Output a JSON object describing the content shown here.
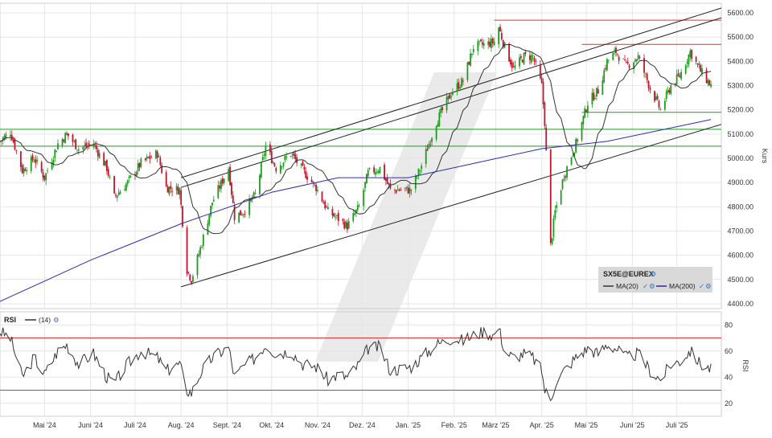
{
  "chart_data": [
    {
      "type": "candlestick",
      "title": "SX5E@EUREX",
      "ylabel": "Kurs",
      "ylim": [
        4380,
        5640
      ],
      "yticks": [
        4400,
        4500,
        4600,
        4700,
        4800,
        4900,
        5000,
        5100,
        5200,
        5300,
        5400,
        5500,
        5600
      ],
      "ytick_labels": [
        "4400.00",
        "4500.00",
        "4600.00",
        "4700.00",
        "4800.00",
        "4900.00",
        "5000.00",
        "5100.00",
        "5200.00",
        "5300.00",
        "5400.00",
        "5500.00",
        "5600.00"
      ],
      "xlim": [
        "2024-04-01",
        "2025-07-31"
      ],
      "xticks": [
        "2024-05-01",
        "2024-06-01",
        "2024-07-01",
        "2024-08-01",
        "2024-09-01",
        "2024-10-01",
        "2024-11-01",
        "2024-12-01",
        "2025-01-01",
        "2025-02-01",
        "2025-03-01",
        "2025-04-01",
        "2025-05-01",
        "2025-06-01",
        "2025-07-01"
      ],
      "xtick_labels": [
        "Mai '24",
        "Juni '24",
        "Juli '24",
        "Aug. '24",
        "Sept. '24",
        "Okt. '24",
        "Nov. '24",
        "Dez. '24",
        "Jan. '25",
        "Feb. '25",
        "März '25",
        "Apr. '25",
        "Mai '25",
        "Juni '25",
        "Juli '25"
      ],
      "close_path": [
        [
          "2024-04-01",
          5070
        ],
        [
          "2024-04-08",
          5110
        ],
        [
          "2024-04-16",
          4950
        ],
        [
          "2024-04-24",
          5000
        ],
        [
          "2024-05-01",
          4920
        ],
        [
          "2024-05-10",
          5060
        ],
        [
          "2024-05-16",
          5100
        ],
        [
          "2024-05-24",
          5040
        ],
        [
          "2024-06-03",
          5060
        ],
        [
          "2024-06-12",
          4960
        ],
        [
          "2024-06-17",
          4840
        ],
        [
          "2024-06-26",
          4900
        ],
        [
          "2024-07-05",
          4980
        ],
        [
          "2024-07-16",
          5020
        ],
        [
          "2024-07-22",
          4880
        ],
        [
          "2024-07-31",
          4870
        ],
        [
          "2024-08-05",
          4540
        ],
        [
          "2024-08-08",
          4500
        ],
        [
          "2024-08-15",
          4650
        ],
        [
          "2024-08-22",
          4820
        ],
        [
          "2024-09-02",
          4960
        ],
        [
          "2024-09-06",
          4760
        ],
        [
          "2024-09-12",
          4780
        ],
        [
          "2024-09-20",
          4850
        ],
        [
          "2024-09-27",
          5050
        ],
        [
          "2024-10-04",
          4960
        ],
        [
          "2024-10-14",
          5020
        ],
        [
          "2024-10-22",
          4950
        ],
        [
          "2024-10-31",
          4880
        ],
        [
          "2024-11-08",
          4780
        ],
        [
          "2024-11-15",
          4750
        ],
        [
          "2024-11-21",
          4720
        ],
        [
          "2024-11-29",
          4800
        ],
        [
          "2024-12-05",
          4940
        ],
        [
          "2024-12-13",
          4960
        ],
        [
          "2024-12-20",
          4870
        ],
        [
          "2025-01-03",
          4870
        ],
        [
          "2025-01-10",
          4970
        ],
        [
          "2025-01-20",
          5150
        ],
        [
          "2025-01-31",
          5280
        ],
        [
          "2025-02-07",
          5320
        ],
        [
          "2025-02-14",
          5460
        ],
        [
          "2025-02-21",
          5470
        ],
        [
          "2025-02-28",
          5480
        ],
        [
          "2025-03-03",
          5540
        ],
        [
          "2025-03-07",
          5460
        ],
        [
          "2025-03-13",
          5370
        ],
        [
          "2025-03-20",
          5420
        ],
        [
          "2025-03-26",
          5420
        ],
        [
          "2025-04-01",
          5300
        ],
        [
          "2025-04-03",
          5150
        ],
        [
          "2025-04-07",
          4640
        ],
        [
          "2025-04-10",
          4780
        ],
        [
          "2025-04-16",
          4930
        ],
        [
          "2025-04-24",
          5060
        ],
        [
          "2025-05-02",
          5230
        ],
        [
          "2025-05-09",
          5280
        ],
        [
          "2025-05-15",
          5400
        ],
        [
          "2025-05-21",
          5440
        ],
        [
          "2025-05-28",
          5380
        ],
        [
          "2025-06-05",
          5420
        ],
        [
          "2025-06-13",
          5290
        ],
        [
          "2025-06-20",
          5200
        ],
        [
          "2025-06-27",
          5300
        ],
        [
          "2025-07-03",
          5340
        ],
        [
          "2025-07-10",
          5440
        ],
        [
          "2025-07-17",
          5360
        ],
        [
          "2025-07-24",
          5300
        ]
      ],
      "series": [
        {
          "name": "MA(20)",
          "color": "#333333"
        },
        {
          "name": "MA(200)",
          "color": "#2b2bb0"
        }
      ],
      "ma200_path": [
        [
          "2024-04-01",
          4410
        ],
        [
          "2024-06-01",
          4580
        ],
        [
          "2024-08-01",
          4730
        ],
        [
          "2024-10-01",
          4860
        ],
        [
          "2024-11-15",
          4920
        ],
        [
          "2025-01-01",
          4920
        ],
        [
          "2025-02-15",
          4980
        ],
        [
          "2025-04-01",
          5040
        ],
        [
          "2025-05-15",
          5070
        ],
        [
          "2025-07-24",
          5160
        ]
      ],
      "trendlines": [
        {
          "from": [
            "2024-08-01",
            4470
          ],
          "to": [
            "2025-07-31",
            5140
          ],
          "color": "#222222"
        },
        {
          "from": [
            "2024-08-01",
            4880
          ],
          "to": [
            "2025-07-31",
            5580
          ],
          "color": "#222222"
        },
        {
          "from": [
            "2024-08-01",
            4920
          ],
          "to": [
            "2025-07-31",
            5620
          ],
          "color": "#222222"
        }
      ],
      "hlines": [
        {
          "y": 5570,
          "from": "2025-02-28",
          "color": "#e03030"
        },
        {
          "y": 5470,
          "from": "2025-04-28",
          "color": "#e03030"
        },
        {
          "y": 5190,
          "from": "2025-04-28",
          "color": "#1f9a1f"
        },
        {
          "y": 5120,
          "from": "2024-04-01",
          "color": "#1f9a1f"
        },
        {
          "y": 5050,
          "from": "2024-04-01",
          "color": "#1f9a1f"
        }
      ],
      "legend_position": "bottom-right",
      "up_color": "#1f9a1f",
      "down_color": "#c0142c"
    },
    {
      "type": "line",
      "title": "RSI",
      "series": [
        {
          "name": "(14)",
          "color": "#333333"
        }
      ],
      "ylim": [
        10,
        90
      ],
      "yticks": [
        20,
        40,
        60,
        80
      ],
      "ytick_labels": [
        "20",
        "40",
        "60",
        "80"
      ],
      "ylabel": "RSI",
      "levels": [
        {
          "y": 70,
          "color": "#e03030"
        },
        {
          "y": 30,
          "color": "#1f9a1f"
        }
      ],
      "path": [
        [
          "2024-04-01",
          75
        ],
        [
          "2024-04-08",
          70
        ],
        [
          "2024-04-16",
          40
        ],
        [
          "2024-04-24",
          55
        ],
        [
          "2024-05-01",
          42
        ],
        [
          "2024-05-10",
          60
        ],
        [
          "2024-05-16",
          65
        ],
        [
          "2024-05-24",
          50
        ],
        [
          "2024-06-03",
          58
        ],
        [
          "2024-06-12",
          40
        ],
        [
          "2024-06-17",
          35
        ],
        [
          "2024-06-26",
          50
        ],
        [
          "2024-07-05",
          60
        ],
        [
          "2024-07-16",
          55
        ],
        [
          "2024-07-22",
          45
        ],
        [
          "2024-07-31",
          50
        ],
        [
          "2024-08-05",
          30
        ],
        [
          "2024-08-08",
          28
        ],
        [
          "2024-08-15",
          45
        ],
        [
          "2024-08-22",
          55
        ],
        [
          "2024-09-02",
          63
        ],
        [
          "2024-09-06",
          40
        ],
        [
          "2024-09-12",
          48
        ],
        [
          "2024-09-20",
          55
        ],
        [
          "2024-09-27",
          65
        ],
        [
          "2024-10-04",
          58
        ],
        [
          "2024-10-14",
          60
        ],
        [
          "2024-10-22",
          50
        ],
        [
          "2024-10-31",
          48
        ],
        [
          "2024-11-08",
          38
        ],
        [
          "2024-11-15",
          42
        ],
        [
          "2024-11-21",
          40
        ],
        [
          "2024-11-29",
          50
        ],
        [
          "2024-12-05",
          62
        ],
        [
          "2024-12-13",
          63
        ],
        [
          "2024-12-20",
          45
        ],
        [
          "2025-01-03",
          48
        ],
        [
          "2025-01-10",
          55
        ],
        [
          "2025-01-20",
          65
        ],
        [
          "2025-01-31",
          70
        ],
        [
          "2025-02-07",
          68
        ],
        [
          "2025-02-14",
          72
        ],
        [
          "2025-02-21",
          75
        ],
        [
          "2025-02-28",
          72
        ],
        [
          "2025-03-03",
          78
        ],
        [
          "2025-03-07",
          60
        ],
        [
          "2025-03-13",
          55
        ],
        [
          "2025-03-20",
          58
        ],
        [
          "2025-03-26",
          55
        ],
        [
          "2025-04-01",
          45
        ],
        [
          "2025-04-03",
          30
        ],
        [
          "2025-04-07",
          22
        ],
        [
          "2025-04-10",
          35
        ],
        [
          "2025-04-16",
          45
        ],
        [
          "2025-04-24",
          55
        ],
        [
          "2025-05-02",
          62
        ],
        [
          "2025-05-09",
          58
        ],
        [
          "2025-05-15",
          65
        ],
        [
          "2025-05-21",
          62
        ],
        [
          "2025-05-28",
          55
        ],
        [
          "2025-06-05",
          58
        ],
        [
          "2025-06-13",
          45
        ],
        [
          "2025-06-20",
          38
        ],
        [
          "2025-06-27",
          50
        ],
        [
          "2025-07-03",
          52
        ],
        [
          "2025-07-10",
          60
        ],
        [
          "2025-07-17",
          50
        ],
        [
          "2025-07-24",
          46
        ]
      ]
    }
  ],
  "legend": {
    "symbol": "SX5E@EUREX",
    "ma20": "MA(20)",
    "ma200": "MA(200)",
    "check": "✓",
    "gear": "⚙"
  },
  "rsi_label": {
    "name": "RSI",
    "period": "(14)"
  }
}
